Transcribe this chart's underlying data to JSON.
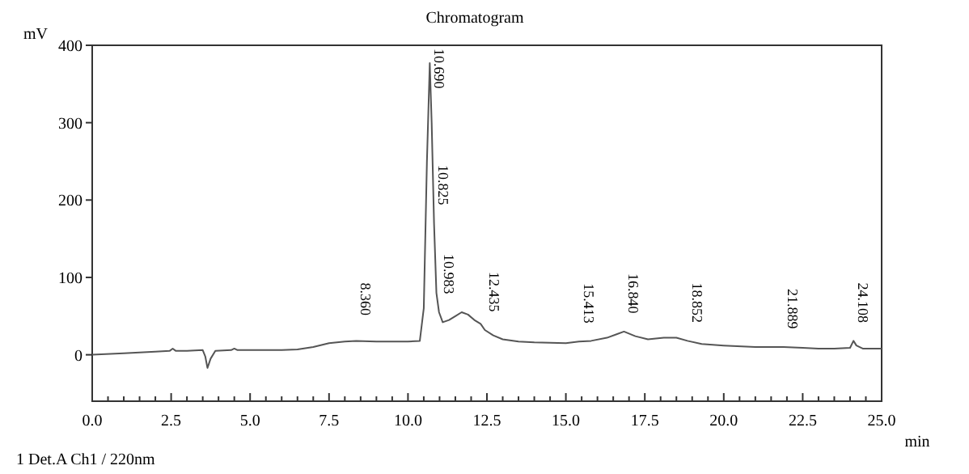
{
  "chart_data": {
    "type": "line",
    "title": "Chromatogram",
    "ylabel": "mV",
    "xlabel": "min",
    "xlim": [
      0,
      25
    ],
    "ylim": [
      -60,
      400
    ],
    "xticks": [
      {
        "value": 0,
        "label": "0.0"
      },
      {
        "value": 0.5,
        "label": null
      },
      {
        "value": 1,
        "label": null
      },
      {
        "value": 1.5,
        "label": null
      },
      {
        "value": 2,
        "label": null
      },
      {
        "value": 2.5,
        "label": "2.5"
      },
      {
        "value": 3,
        "label": null
      },
      {
        "value": 3.5,
        "label": null
      },
      {
        "value": 4,
        "label": null
      },
      {
        "value": 4.5,
        "label": null
      },
      {
        "value": 5,
        "label": "5.0"
      },
      {
        "value": 5.5,
        "label": null
      },
      {
        "value": 6,
        "label": null
      },
      {
        "value": 6.5,
        "label": null
      },
      {
        "value": 7,
        "label": null
      },
      {
        "value": 7.5,
        "label": "7.5"
      },
      {
        "value": 8,
        "label": null
      },
      {
        "value": 8.5,
        "label": null
      },
      {
        "value": 9,
        "label": null
      },
      {
        "value": 9.5,
        "label": null
      },
      {
        "value": 10,
        "label": "10.0"
      },
      {
        "value": 10.5,
        "label": null
      },
      {
        "value": 11,
        "label": null
      },
      {
        "value": 11.5,
        "label": null
      },
      {
        "value": 12,
        "label": null
      },
      {
        "value": 12.5,
        "label": "12.5"
      },
      {
        "value": 13,
        "label": null
      },
      {
        "value": 13.5,
        "label": null
      },
      {
        "value": 14,
        "label": null
      },
      {
        "value": 14.5,
        "label": null
      },
      {
        "value": 15,
        "label": "15.0"
      },
      {
        "value": 15.5,
        "label": null
      },
      {
        "value": 16,
        "label": null
      },
      {
        "value": 16.5,
        "label": null
      },
      {
        "value": 17,
        "label": null
      },
      {
        "value": 17.5,
        "label": "17.5"
      },
      {
        "value": 18,
        "label": null
      },
      {
        "value": 18.5,
        "label": null
      },
      {
        "value": 19,
        "label": null
      },
      {
        "value": 19.5,
        "label": null
      },
      {
        "value": 20,
        "label": "20.0"
      },
      {
        "value": 20.5,
        "label": null
      },
      {
        "value": 21,
        "label": null
      },
      {
        "value": 21.5,
        "label": null
      },
      {
        "value": 22,
        "label": null
      },
      {
        "value": 22.5,
        "label": "22.5"
      },
      {
        "value": 23,
        "label": null
      },
      {
        "value": 23.5,
        "label": null
      },
      {
        "value": 24,
        "label": null
      },
      {
        "value": 24.5,
        "label": null
      },
      {
        "value": 25,
        "label": "25.0"
      }
    ],
    "yticks": [
      0,
      100,
      200,
      300,
      400
    ],
    "marker": "none",
    "line_style": "solid",
    "series": [
      {
        "color": "#555555",
        "x": [
          0,
          1,
          2,
          2.45,
          2.55,
          2.65,
          3,
          3.5,
          3.58,
          3.65,
          3.75,
          3.9,
          4.4,
          4.5,
          4.6,
          5,
          6,
          6.5,
          7,
          7.5,
          8,
          8.36,
          9,
          10,
          10.375,
          10.5,
          10.6,
          10.69,
          10.75,
          10.825,
          10.9,
          10.983,
          11.1,
          11.3,
          11.5,
          11.7,
          11.9,
          12.1,
          12.3,
          12.435,
          12.7,
          13,
          13.5,
          14,
          15,
          15.413,
          15.8,
          16.3,
          16.84,
          17.2,
          17.6,
          18.1,
          18.5,
          18.852,
          19.3,
          20,
          21,
          21.889,
          22.5,
          23,
          23.5,
          24,
          24.108,
          24.2,
          24.4,
          25
        ],
        "values": [
          0,
          2,
          4,
          5,
          8,
          5,
          5,
          6,
          -2,
          -17,
          -5,
          5,
          6,
          8,
          6,
          6,
          6,
          7,
          10,
          15,
          17,
          18,
          17,
          17,
          18,
          60,
          250,
          377,
          300,
          170,
          80,
          55,
          42,
          45,
          50,
          55,
          52,
          45,
          40,
          32,
          25,
          20,
          17,
          16,
          15,
          17,
          18,
          22,
          30,
          24,
          20,
          22,
          22,
          18,
          14,
          12,
          10,
          10,
          9,
          8,
          8,
          9,
          18,
          12,
          8,
          8
        ]
      }
    ],
    "annotations": [
      {
        "text": "8.360",
        "x": 8.36,
        "y": 18
      },
      {
        "text": "10.690",
        "x": 10.69,
        "y": 377
      },
      {
        "text": "10.825",
        "x": 10.825,
        "y": 170
      },
      {
        "text": "10.983",
        "x": 10.983,
        "y": 55
      },
      {
        "text": "12.435",
        "x": 12.435,
        "y": 32
      },
      {
        "text": "15.413",
        "x": 15.413,
        "y": 17
      },
      {
        "text": "16.840",
        "x": 16.84,
        "y": 30
      },
      {
        "text": "18.852",
        "x": 18.852,
        "y": 18
      },
      {
        "text": "21.889",
        "x": 21.889,
        "y": 10
      },
      {
        "text": "24.108",
        "x": 24.108,
        "y": 18
      },
      "1 Det.A Ch1 / 220nm"
    ]
  }
}
